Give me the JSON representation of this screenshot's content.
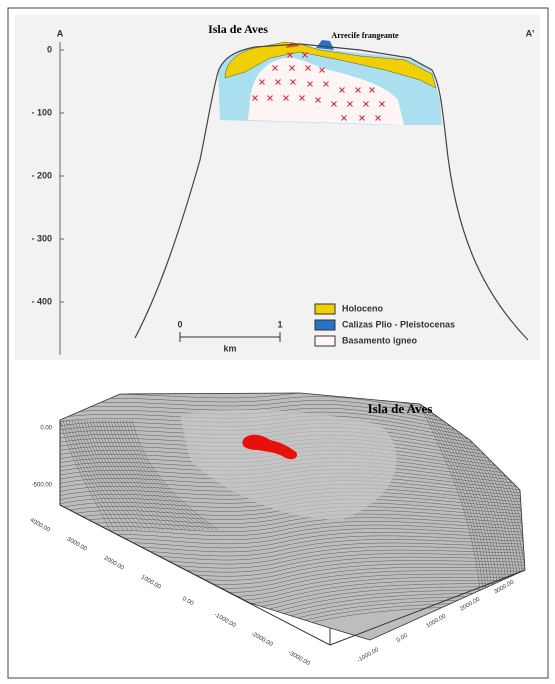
{
  "cross_section": {
    "label_left": "A",
    "label_right": "A'",
    "title": "Isla de Aves",
    "reef_label": "Arrecife frangeante",
    "depth_labels": [
      "0",
      "- 100",
      "- 200",
      "- 300",
      "- 400"
    ],
    "scale": {
      "start": "0",
      "end": "1",
      "unit": "km"
    },
    "legend": [
      "Holoceno",
      "Calizas Plio - Pleistocenas",
      "Basamento igneo"
    ]
  },
  "block_diagram": {
    "title": "Isla de Aves",
    "z_labels": [
      "0.00",
      "-500.00"
    ],
    "left_axis_labels": [
      "4000.00",
      "3000.00",
      "2000.00",
      "1000.00",
      "0.00",
      "-1000.00",
      "-2000.00",
      "-3000.00"
    ],
    "right_axis_labels": [
      "-1000.00",
      "0.00",
      "1000.00",
      "2000.00",
      "3000.00"
    ]
  }
}
